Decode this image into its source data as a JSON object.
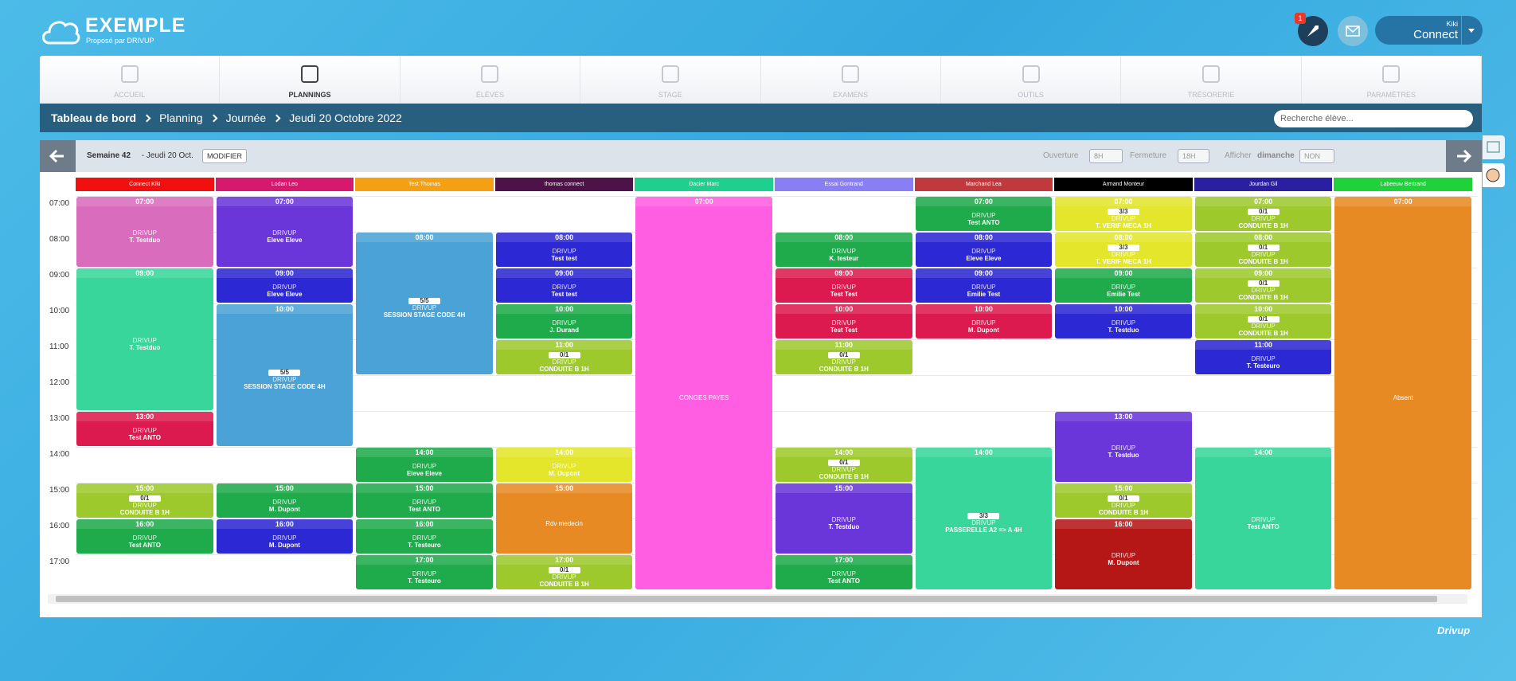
{
  "header": {
    "brand": "EXEMPLE",
    "tagline": "Proposé par DRIVUP",
    "notification_count": "1",
    "user": "Kiki",
    "user_button": "Connect"
  },
  "nav": [
    "ACCUEIL",
    "PLANNINGS",
    "ÉLÈVES",
    "STAGE",
    "EXAMENS",
    "OUTILS",
    "TRÉSORERIE",
    "PARAMÈTRES"
  ],
  "breadcrumb": [
    "Tableau de bord",
    "Planning",
    "Journée",
    "Jeudi 20 Octobre 2022"
  ],
  "search_placeholder": "Recherche élève...",
  "toolbar": {
    "week": "Semaine 42",
    "date": " - Jeudi 20 Oct.",
    "modify": "MODIFIER",
    "opening_label": "Ouverture",
    "opening": "8H",
    "closing_label": "Fermeture",
    "closing": "18H",
    "sunday_label": "Afficher",
    "sunday_word": "dimanche",
    "sunday": "NON"
  },
  "times": [
    "07:00",
    "08:00",
    "09:00",
    "10:00",
    "11:00",
    "12:00",
    "13:00",
    "14:00",
    "15:00",
    "16:00",
    "17:00"
  ],
  "columns": [
    {
      "name": "Connect Kiki",
      "color": "#f01010",
      "events": [
        {
          "start": "07:00",
          "hours": 2,
          "color": "#d96cbd",
          "lines": [
            "DRIVUP",
            "T. Testduo"
          ]
        },
        {
          "start": "09:00",
          "hours": 4,
          "color": "#38d69a",
          "lines": [
            "DRIVUP",
            "T. Testduo"
          ]
        },
        {
          "start": "13:00",
          "hours": 1,
          "color": "#dc1a4f",
          "lines": [
            "DRIVUP",
            "Test ANTO"
          ]
        },
        {
          "start": "15:00",
          "hours": 1,
          "color": "#9ec92d",
          "badge": "0/1",
          "lines": [
            "DRIVUP",
            "CONDUITE B 1H"
          ]
        },
        {
          "start": "16:00",
          "hours": 1,
          "color": "#1fab4c",
          "lines": [
            "DRIVUP",
            "Test ANTO"
          ]
        }
      ]
    },
    {
      "name": "Lodan Leo",
      "color": "#d6186f",
      "events": [
        {
          "start": "07:00",
          "hours": 2,
          "color": "#6a35d9",
          "lines": [
            "DRIVUP",
            "Eleve Eleve"
          ]
        },
        {
          "start": "09:00",
          "hours": 1,
          "color": "#2c28d4",
          "lines": [
            "DRIVUP",
            "Eleve Eleve"
          ]
        },
        {
          "start": "10:00",
          "hours": 4,
          "color": "#4ba2d6",
          "badge": "5/5",
          "lines": [
            "DRIVUP",
            "SESSION STAGE CODE 4H"
          ]
        },
        {
          "start": "15:00",
          "hours": 1,
          "color": "#1fab4c",
          "lines": [
            "DRIVUP",
            "M. Dupont"
          ]
        },
        {
          "start": "16:00",
          "hours": 1,
          "color": "#2c28d4",
          "lines": [
            "DRIVUP",
            "M. Dupont"
          ]
        }
      ]
    },
    {
      "name": "Test Thomas",
      "color": "#f5a012",
      "events": [
        {
          "start": "08:00",
          "hours": 4,
          "color": "#4ba2d6",
          "badge": "5/5",
          "lines": [
            "DRIVUP",
            "SESSION STAGE CODE 4H"
          ]
        },
        {
          "start": "14:00",
          "hours": 1,
          "color": "#1fab4c",
          "lines": [
            "DRIVUP",
            "Eleve Eleve"
          ]
        },
        {
          "start": "15:00",
          "hours": 1,
          "color": "#1fab4c",
          "lines": [
            "DRIVUP",
            "Test ANTO"
          ]
        },
        {
          "start": "16:00",
          "hours": 1,
          "color": "#1fab4c",
          "lines": [
            "DRIVUP",
            "T. Testeuro"
          ]
        },
        {
          "start": "17:00",
          "hours": 1,
          "color": "#1fab4c",
          "lines": [
            "DRIVUP",
            "T. Testeuro"
          ]
        }
      ]
    },
    {
      "name": "thomas connect",
      "color": "#4d1247",
      "events": [
        {
          "start": "08:00",
          "hours": 1,
          "color": "#2c28d4",
          "lines": [
            "DRIVUP",
            "Test test"
          ]
        },
        {
          "start": "09:00",
          "hours": 1,
          "color": "#2c28d4",
          "lines": [
            "DRIVUP",
            "Test test"
          ]
        },
        {
          "start": "10:00",
          "hours": 1,
          "color": "#1fab4c",
          "lines": [
            "DRIVUP",
            "J. Durand"
          ]
        },
        {
          "start": "11:00",
          "hours": 1,
          "color": "#9ec92d",
          "badge": "0/1",
          "lines": [
            "DRIVUP",
            "CONDUITE B 1H"
          ]
        },
        {
          "start": "14:00",
          "hours": 1,
          "color": "#e3e62a",
          "lines": [
            "DRIVUP",
            "M. Dupont"
          ]
        },
        {
          "start": "15:00",
          "hours": 2,
          "color": "#e88a23",
          "lines": [
            "Rdv medecin"
          ]
        },
        {
          "start": "17:00",
          "hours": 1,
          "color": "#9ec92d",
          "badge": "0/1",
          "lines": [
            "DRIVUP",
            "CONDUITE B 1H"
          ]
        }
      ]
    },
    {
      "name": "Dacier Marc",
      "color": "#1ecf8d",
      "events": [
        {
          "start": "07:00",
          "hours": 11,
          "color": "#ff5ee2",
          "lines": [
            "CONGES PAYES"
          ]
        }
      ]
    },
    {
      "name": "Essai Gontrand",
      "color": "#8a7ef5",
      "events": [
        {
          "start": "08:00",
          "hours": 1,
          "color": "#1fab4c",
          "lines": [
            "DRIVUP",
            "K. testeur"
          ]
        },
        {
          "start": "09:00",
          "hours": 1,
          "color": "#dc1a4f",
          "lines": [
            "DRIVUP",
            "Test Test"
          ]
        },
        {
          "start": "10:00",
          "hours": 1,
          "color": "#dc1a4f",
          "lines": [
            "DRIVUP",
            "Test Test"
          ]
        },
        {
          "start": "11:00",
          "hours": 1,
          "color": "#9ec92d",
          "badge": "0/1",
          "lines": [
            "DRIVUP",
            "CONDUITE B 1H"
          ]
        },
        {
          "start": "14:00",
          "hours": 1,
          "color": "#9ec92d",
          "badge": "0/1",
          "lines": [
            "DRIVUP",
            "CONDUITE B 1H"
          ]
        },
        {
          "start": "15:00",
          "hours": 2,
          "color": "#6a35d9",
          "lines": [
            "DRIVUP",
            "T. Testduo"
          ]
        },
        {
          "start": "17:00",
          "hours": 1,
          "color": "#1fab4c",
          "lines": [
            "DRIVUP",
            "Test ANTO"
          ]
        }
      ]
    },
    {
      "name": "Marchand Lea",
      "color": "#c0393c",
      "events": [
        {
          "start": "07:00",
          "hours": 1,
          "color": "#1fab4c",
          "lines": [
            "DRIVUP",
            "Test ANTO"
          ]
        },
        {
          "start": "08:00",
          "hours": 1,
          "color": "#2c28d4",
          "lines": [
            "DRIVUP",
            "Eleve Eleve"
          ]
        },
        {
          "start": "09:00",
          "hours": 1,
          "color": "#2c28d4",
          "lines": [
            "DRIVUP",
            "Emilie Test"
          ]
        },
        {
          "start": "10:00",
          "hours": 1,
          "color": "#dc1a4f",
          "lines": [
            "DRIVUP",
            "M. Dupont"
          ]
        },
        {
          "start": "14:00",
          "hours": 4,
          "color": "#38d69a",
          "badge": "3/3",
          "lines": [
            "DRIVUP",
            "PASSERELLE A2 => A 4H"
          ]
        }
      ]
    },
    {
      "name": "Armand Monteur",
      "color": "#000000",
      "events": [
        {
          "start": "07:00",
          "hours": 1,
          "color": "#e3e62a",
          "badge": "3/3",
          "lines": [
            "DRIVUP",
            "T. VERIF MECA 1H"
          ]
        },
        {
          "start": "08:00",
          "hours": 1,
          "color": "#e3e62a",
          "badge": "3/3",
          "lines": [
            "DRIVUP",
            "T. VERIF MECA 1H"
          ]
        },
        {
          "start": "09:00",
          "hours": 1,
          "color": "#1fab4c",
          "lines": [
            "DRIVUP",
            "Emilie Test"
          ]
        },
        {
          "start": "10:00",
          "hours": 1,
          "color": "#2c28d4",
          "lines": [
            "DRIVUP",
            "T. Testduo"
          ]
        },
        {
          "start": "13:00",
          "hours": 2,
          "color": "#6a35d9",
          "lines": [
            "DRIVUP",
            "T. Testduo"
          ]
        },
        {
          "start": "15:00",
          "hours": 1,
          "color": "#9ec92d",
          "badge": "0/1",
          "lines": [
            "DRIVUP",
            "CONDUITE B 1H"
          ]
        },
        {
          "start": "16:00",
          "hours": 2,
          "color": "#b51616",
          "lines": [
            "DRIVUP",
            "M. Dupont"
          ]
        }
      ]
    },
    {
      "name": "Jourdan Gil",
      "color": "#2a1fa0",
      "events": [
        {
          "start": "07:00",
          "hours": 1,
          "color": "#9ec92d",
          "badge": "0/1",
          "lines": [
            "DRIVUP",
            "CONDUITE B 1H"
          ]
        },
        {
          "start": "08:00",
          "hours": 1,
          "color": "#9ec92d",
          "badge": "0/1",
          "lines": [
            "DRIVUP",
            "CONDUITE B 1H"
          ]
        },
        {
          "start": "09:00",
          "hours": 1,
          "color": "#9ec92d",
          "badge": "0/1",
          "lines": [
            "DRIVUP",
            "CONDUITE B 1H"
          ]
        },
        {
          "start": "10:00",
          "hours": 1,
          "color": "#9ec92d",
          "badge": "0/1",
          "lines": [
            "DRIVUP",
            "CONDUITE B 1H"
          ]
        },
        {
          "start": "11:00",
          "hours": 1,
          "color": "#2c28d4",
          "lines": [
            "DRIVUP",
            "T. Testeuro"
          ]
        },
        {
          "start": "14:00",
          "hours": 4,
          "color": "#38d69a",
          "lines": [
            "DRIVUP",
            "Test ANTO"
          ]
        }
      ]
    },
    {
      "name": "Labeeuw Bertrand",
      "color": "#1fd13b",
      "events": [
        {
          "start": "07:00",
          "hours": 11,
          "color": "#e88a23",
          "lines": [
            "Absent"
          ]
        }
      ]
    }
  ],
  "footer": "Drivup"
}
